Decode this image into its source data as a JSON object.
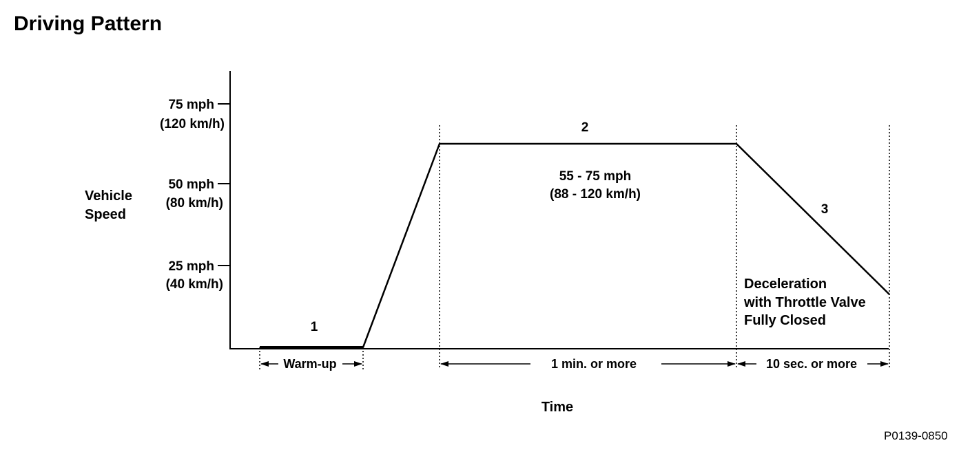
{
  "title": "Driving Pattern",
  "figure_id": "P0139-0850",
  "axes": {
    "y_label": [
      "Vehicle",
      "Speed"
    ],
    "x_label": "Time",
    "y_ticks": [
      {
        "value_mph": 75,
        "mph": "75 mph",
        "kmh": "(120 km/h)"
      },
      {
        "value_mph": 50,
        "mph": "50 mph",
        "kmh": "(80 km/h)"
      },
      {
        "value_mph": 25,
        "mph": "25 mph",
        "kmh": "(40 km/h)"
      }
    ]
  },
  "phases": [
    {
      "number": "1",
      "duration": "Warm-up"
    },
    {
      "number": "2",
      "speed": [
        "55 - 75 mph",
        "(88 - 120 km/h)"
      ],
      "duration": "1 min. or  more"
    },
    {
      "number": "3",
      "note": [
        "Deceleration",
        "with Throttle Valve",
        "Fully Closed"
      ],
      "duration": "10 sec. or  more"
    }
  ],
  "colors": {
    "ink": "#000000",
    "background": "#ffffff"
  }
}
